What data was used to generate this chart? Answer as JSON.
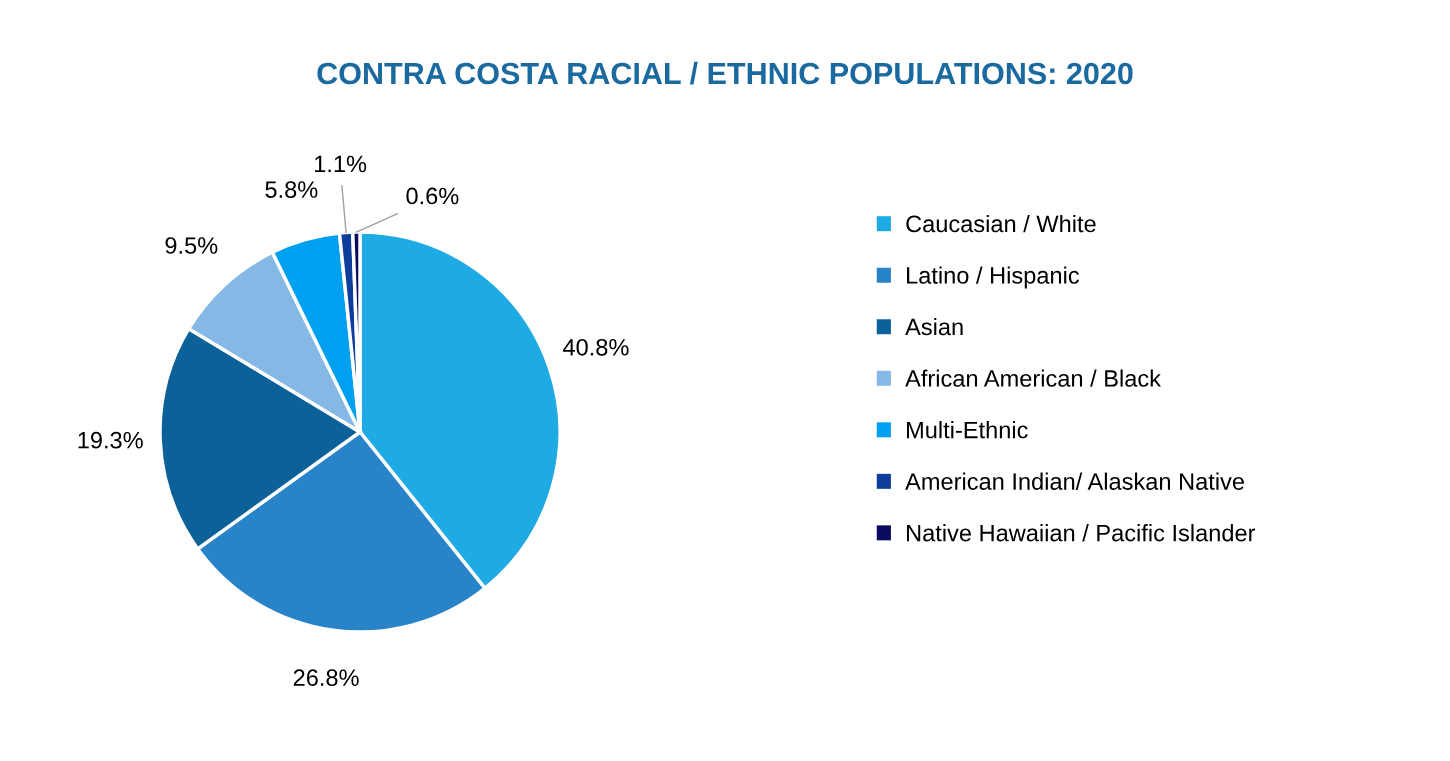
{
  "chart_data": {
    "type": "pie",
    "title": "CONTRA COSTA RACIAL / ETHNIC POPULATIONS: 2020",
    "categories": [
      "Caucasian / White",
      "Latino / Hispanic",
      "Asian",
      "African American / Black",
      "Multi-Ethnic",
      "American Indian/ Alaskan Native",
      "Native Hawaiian / Pacific Islander"
    ],
    "values": [
      40.8,
      26.8,
      19.3,
      9.5,
      5.8,
      1.1,
      0.6
    ],
    "value_labels": [
      "40.8%",
      "26.8%",
      "19.3%",
      "9.5%",
      "5.8%",
      "1.1%",
      "0.6%"
    ],
    "colors": [
      "#1eaae2",
      "#2983c8",
      "#0c6199",
      "#85b8e4",
      "#00a0f0",
      "#0e3d9c",
      "#0a0a5e"
    ],
    "legend": "right"
  }
}
